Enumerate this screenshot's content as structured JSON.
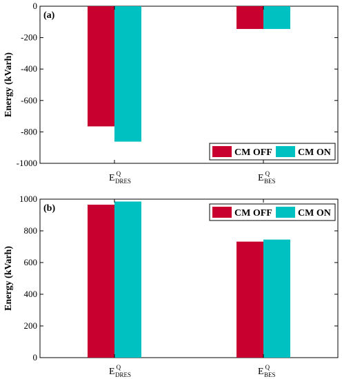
{
  "colors": {
    "cm_off": "#c8002f",
    "cm_on": "#00c1c1"
  },
  "chart_data": [
    {
      "type": "bar",
      "panel_label": "(a)",
      "ylabel": "Energy (kVarh)",
      "ylim": [
        -1000,
        0
      ],
      "yticks": [
        "0",
        "-200",
        "-400",
        "-600",
        "-800",
        "-1000"
      ],
      "categories": [
        {
          "base": "E",
          "sup": "Q",
          "sub": "DRES"
        },
        {
          "base": "E",
          "sup": "Q",
          "sub": "BES"
        }
      ],
      "series": [
        {
          "name": "CM OFF",
          "color": "#c8002f",
          "values": [
            -765,
            -145
          ]
        },
        {
          "name": "CM ON",
          "color": "#00c1c1",
          "values": [
            -862,
            -145
          ]
        }
      ],
      "legend_position": "bottom-right"
    },
    {
      "type": "bar",
      "panel_label": "(b)",
      "ylabel": "Energy (kVarh)",
      "ylim": [
        0,
        1000
      ],
      "yticks": [
        "1000",
        "800",
        "600",
        "400",
        "200",
        "0"
      ],
      "categories": [
        {
          "base": "E",
          "sup": "Q",
          "sub": "DRES"
        },
        {
          "base": "E",
          "sup": "Q",
          "sub": "BES"
        }
      ],
      "series": [
        {
          "name": "CM OFF",
          "color": "#c8002f",
          "values": [
            965,
            732
          ]
        },
        {
          "name": "CM ON",
          "color": "#00c1c1",
          "values": [
            985,
            745
          ]
        }
      ],
      "legend_position": "top-right"
    }
  ]
}
